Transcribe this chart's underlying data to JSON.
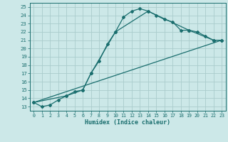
{
  "title": "",
  "xlabel": "Humidex (Indice chaleur)",
  "ylabel": "",
  "background_color": "#cce8e8",
  "grid_color": "#aacccc",
  "line_color": "#1a6e6e",
  "xlim": [
    -0.5,
    23.5
  ],
  "ylim": [
    12.5,
    25.5
  ],
  "yticks": [
    13,
    14,
    15,
    16,
    17,
    18,
    19,
    20,
    21,
    22,
    23,
    24,
    25
  ],
  "xticks": [
    0,
    1,
    2,
    3,
    4,
    5,
    6,
    7,
    8,
    9,
    10,
    11,
    12,
    13,
    14,
    15,
    16,
    17,
    18,
    19,
    20,
    21,
    22,
    23
  ],
  "line1_x": [
    0,
    1,
    2,
    3,
    4,
    5,
    6,
    7,
    8,
    9,
    10,
    11,
    12,
    13,
    14,
    15,
    16,
    17,
    18,
    19,
    20,
    21,
    22,
    23
  ],
  "line1_y": [
    13.5,
    13.0,
    13.2,
    13.8,
    14.3,
    14.8,
    15.0,
    17.0,
    18.5,
    20.5,
    22.0,
    23.8,
    24.5,
    24.8,
    24.5,
    24.0,
    23.5,
    23.2,
    22.2,
    22.2,
    22.0,
    21.5,
    21.0,
    21.0
  ],
  "line2_x": [
    0,
    4,
    6,
    7,
    10,
    14,
    19,
    22,
    23
  ],
  "line2_y": [
    13.5,
    14.3,
    15.0,
    17.0,
    22.0,
    24.5,
    22.2,
    21.0,
    21.0
  ],
  "line3_x": [
    0,
    23
  ],
  "line3_y": [
    13.5,
    21.0
  ]
}
